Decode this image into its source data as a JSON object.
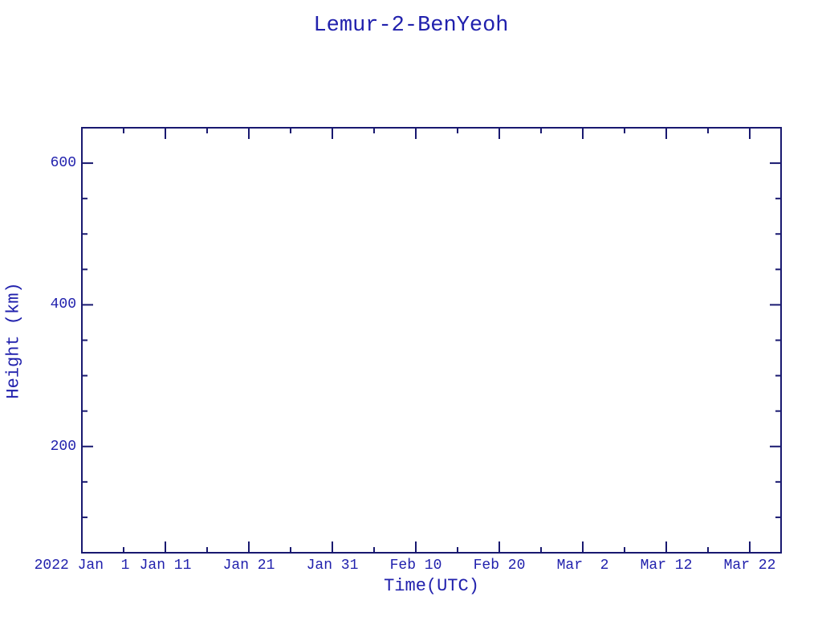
{
  "title": "Lemur-2-BenYeoh",
  "colors": {
    "axis": "#191970",
    "text": "#2121ad",
    "background": "#ffffff"
  },
  "chart_data": {
    "type": "scatter",
    "title": "Lemur-2-BenYeoh",
    "xlabel": "Time(UTC)",
    "ylabel": "Height (km)",
    "x_unit": "days since 2022 Jan 1",
    "x_range": [
      0,
      83.75
    ],
    "x_major_ticks": [
      0,
      10,
      20,
      30,
      40,
      50,
      60,
      70,
      80
    ],
    "x_minor_ticks": [
      5,
      15,
      25,
      35,
      45,
      55,
      65,
      75
    ],
    "x_tick_labels": [
      "2022 Jan  1",
      "Jan 11",
      "Jan 21",
      "Jan 31",
      "Feb 10",
      "Feb 20",
      "Mar  2",
      "Mar 12",
      "Mar 22"
    ],
    "ylim": [
      50,
      650
    ],
    "y_major_ticks": [
      200,
      400,
      600
    ],
    "y_minor_ticks": [
      100,
      150,
      250,
      300,
      350,
      450,
      500,
      550
    ],
    "y_tick_labels": [
      "200",
      "400",
      "600"
    ],
    "grid": false,
    "legend": null,
    "frame": "box-with-inward-ticks",
    "series": []
  }
}
